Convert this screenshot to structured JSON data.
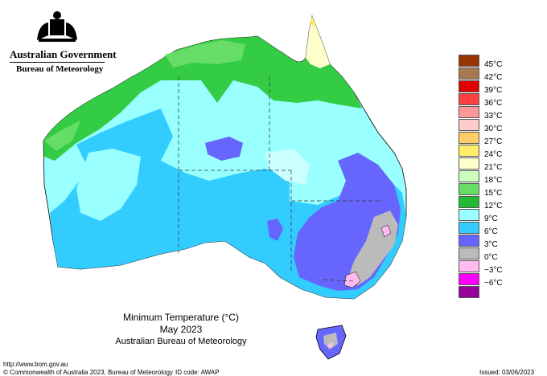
{
  "header": {
    "government": "Australian Government",
    "bureau": "Bureau of Meteorology"
  },
  "map": {
    "title": "Minimum Temperature (°C)",
    "period": "May 2023",
    "source": "Australian Bureau of Meteorology"
  },
  "legend": [
    {
      "label": "45°C",
      "color": "#993300"
    },
    {
      "label": "42°C",
      "color": "#a87850"
    },
    {
      "label": "39°C",
      "color": "#e00000"
    },
    {
      "label": "36°C",
      "color": "#ff4040"
    },
    {
      "label": "33°C",
      "color": "#ff9999"
    },
    {
      "label": "30°C",
      "color": "#ffcccc"
    },
    {
      "label": "27°C",
      "color": "#ffcc66"
    },
    {
      "label": "24°C",
      "color": "#ffee66"
    },
    {
      "label": "21°C",
      "color": "#ffffcc"
    },
    {
      "label": "18°C",
      "color": "#ccffbb"
    },
    {
      "label": "15°C",
      "color": "#66dd66"
    },
    {
      "label": "12°C",
      "color": "#22bb33"
    },
    {
      "label": "9°C",
      "color": "#99ffff"
    },
    {
      "label": "6°C",
      "color": "#33ccff"
    },
    {
      "label": "3°C",
      "color": "#6666ff"
    },
    {
      "label": "0°C",
      "color": "#bbbbbb"
    },
    {
      "label": "−3°C",
      "color": "#ffbbee"
    },
    {
      "label": "−6°C",
      "color": "#ff00ff"
    },
    {
      "label": "",
      "color": "#990099"
    }
  ],
  "footer": {
    "url": "http://www.bom.gov.au",
    "copyright": "© Commonwealth of Australia 2023, Bureau of Meteorology",
    "id_code": "ID code: AWAP",
    "issued": "Issued: 03/06/2023"
  }
}
